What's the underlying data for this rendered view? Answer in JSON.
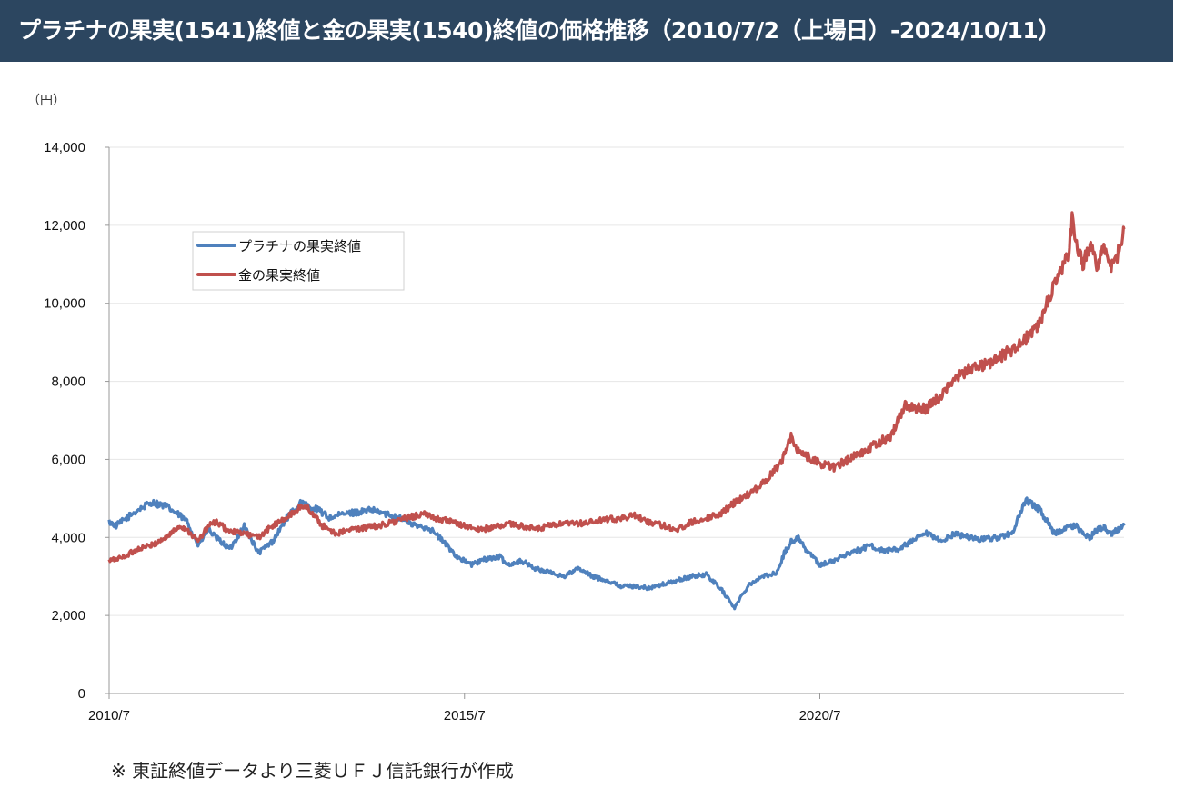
{
  "title": "プラチナの果実(1541)終値と金の果実(1540)終値の価格推移（2010/7/2（上場日）-2024/10/11）",
  "unit": "（円）",
  "footnote": "※ 東証終値データより三菱ＵＦＪ信託銀行が作成",
  "colors": {
    "header_bg": "#2c4660",
    "platinum": "#4f81bd",
    "gold": "#c0504d"
  },
  "chart_data": {
    "type": "line",
    "title": "",
    "xlabel": "",
    "ylabel": "（円）",
    "ylim": [
      0,
      14000
    ],
    "yticks": [
      0,
      2000,
      4000,
      6000,
      8000,
      10000,
      12000,
      14000
    ],
    "ytick_labels": [
      "0",
      "2,000",
      "4,000",
      "6,000",
      "8,000",
      "10,000",
      "12,000",
      "14,000"
    ],
    "xlim": [
      2010.5,
      2024.78
    ],
    "xticks": [
      2010.5,
      2015.5,
      2020.5
    ],
    "xtick_labels": [
      "2010/7",
      "2015/7",
      "2020/7"
    ],
    "legend_position": "upper-left",
    "grid": true,
    "series": [
      {
        "name": "プラチナの果実終値",
        "color": "#4f81bd",
        "x": [
          2010.5,
          2010.6,
          2010.75,
          2010.9,
          2011.1,
          2011.3,
          2011.5,
          2011.6,
          2011.75,
          2011.9,
          2012.0,
          2012.2,
          2012.4,
          2012.6,
          2012.8,
          2013.0,
          2013.2,
          2013.3,
          2013.45,
          2013.6,
          2013.8,
          2014.0,
          2014.2,
          2014.4,
          2014.6,
          2014.8,
          2015.0,
          2015.2,
          2015.4,
          2015.6,
          2015.8,
          2016.0,
          2016.1,
          2016.3,
          2016.5,
          2016.7,
          2016.9,
          2017.1,
          2017.3,
          2017.5,
          2017.7,
          2017.9,
          2018.1,
          2018.3,
          2018.5,
          2018.7,
          2018.9,
          2019.1,
          2019.3,
          2019.5,
          2019.7,
          2019.9,
          2020.0,
          2020.1,
          2020.2,
          2020.3,
          2020.5,
          2020.7,
          2020.9,
          2021.1,
          2021.2,
          2021.4,
          2021.6,
          2021.8,
          2022.0,
          2022.2,
          2022.4,
          2022.6,
          2022.8,
          2023.0,
          2023.2,
          2023.4,
          2023.6,
          2023.8,
          2024.0,
          2024.1,
          2024.2,
          2024.3,
          2024.4,
          2024.5,
          2024.6,
          2024.7,
          2024.78
        ],
        "values": [
          4400,
          4300,
          4500,
          4700,
          4900,
          4800,
          4550,
          4400,
          3800,
          4200,
          4000,
          3700,
          4300,
          3600,
          3900,
          4500,
          4900,
          4800,
          4700,
          4500,
          4600,
          4650,
          4700,
          4600,
          4500,
          4300,
          4250,
          3900,
          3500,
          3300,
          3450,
          3500,
          3300,
          3400,
          3200,
          3100,
          3000,
          3200,
          3000,
          2900,
          2750,
          2750,
          2700,
          2800,
          2900,
          3000,
          3050,
          2700,
          2200,
          2800,
          3000,
          3100,
          3600,
          3900,
          4000,
          3700,
          3300,
          3400,
          3600,
          3700,
          3800,
          3650,
          3700,
          3900,
          4100,
          3900,
          4100,
          4000,
          3950,
          4000,
          4100,
          4950,
          4700,
          4100,
          4250,
          4300,
          4100,
          4000,
          4200,
          4250,
          4100,
          4200,
          4300
        ]
      },
      {
        "name": "金の果実終値",
        "color": "#c0504d",
        "x": [
          2010.5,
          2010.7,
          2010.9,
          2011.1,
          2011.3,
          2011.5,
          2011.6,
          2011.75,
          2011.9,
          2012.0,
          2012.2,
          2012.4,
          2012.6,
          2012.8,
          2013.0,
          2013.1,
          2013.2,
          2013.3,
          2013.5,
          2013.7,
          2013.9,
          2014.1,
          2014.3,
          2014.5,
          2014.7,
          2014.9,
          2015.1,
          2015.3,
          2015.5,
          2015.7,
          2015.9,
          2016.1,
          2016.3,
          2016.5,
          2016.7,
          2016.9,
          2017.1,
          2017.3,
          2017.5,
          2017.7,
          2017.9,
          2018.1,
          2018.3,
          2018.5,
          2018.7,
          2018.9,
          2019.1,
          2019.3,
          2019.5,
          2019.7,
          2019.9,
          2020.0,
          2020.1,
          2020.2,
          2020.3,
          2020.5,
          2020.7,
          2020.9,
          2021.1,
          2021.3,
          2021.5,
          2021.7,
          2021.9,
          2022.0,
          2022.1,
          2022.2,
          2022.4,
          2022.6,
          2022.8,
          2023.0,
          2023.2,
          2023.4,
          2023.6,
          2023.8,
          2024.0,
          2024.05,
          2024.1,
          2024.2,
          2024.3,
          2024.4,
          2024.5,
          2024.6,
          2024.7,
          2024.78
        ],
        "values": [
          3400,
          3500,
          3700,
          3800,
          4000,
          4300,
          4200,
          3900,
          4300,
          4400,
          4150,
          4100,
          4000,
          4300,
          4500,
          4650,
          4800,
          4750,
          4300,
          4100,
          4200,
          4250,
          4300,
          4400,
          4500,
          4600,
          4500,
          4400,
          4300,
          4200,
          4250,
          4350,
          4300,
          4200,
          4300,
          4350,
          4350,
          4400,
          4450,
          4500,
          4550,
          4400,
          4300,
          4200,
          4400,
          4500,
          4600,
          4900,
          5100,
          5400,
          5800,
          6100,
          6600,
          6200,
          6100,
          5900,
          5800,
          6000,
          6200,
          6400,
          6600,
          7400,
          7300,
          7300,
          7500,
          7600,
          8100,
          8300,
          8400,
          8600,
          8800,
          9100,
          9500,
          10500,
          11200,
          12200,
          11500,
          11000,
          11500,
          10900,
          11500,
          11000,
          11300,
          11900
        ]
      }
    ]
  }
}
